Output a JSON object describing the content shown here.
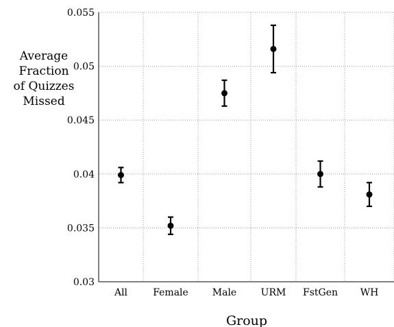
{
  "chart_data": {
    "type": "scatter",
    "categories": [
      "All",
      "Female",
      "Male",
      "URM",
      "FstGen",
      "WH"
    ],
    "values": [
      0.0399,
      0.0352,
      0.0475,
      0.0516,
      0.04,
      0.0381
    ],
    "error_low": [
      0.0392,
      0.0344,
      0.0463,
      0.0494,
      0.0388,
      0.037
    ],
    "error_high": [
      0.0406,
      0.036,
      0.0487,
      0.0538,
      0.0412,
      0.0392
    ],
    "xlabel": "Group",
    "ylabel_lines": [
      "Average",
      "Fraction",
      "of Quizzes",
      "Missed"
    ],
    "ylim": [
      0.03,
      0.055
    ],
    "yticks": [
      "0.03",
      "0.035",
      "0.04",
      "0.045",
      "0.05",
      "0.055"
    ],
    "grid": true,
    "marker_color": "#000000"
  }
}
